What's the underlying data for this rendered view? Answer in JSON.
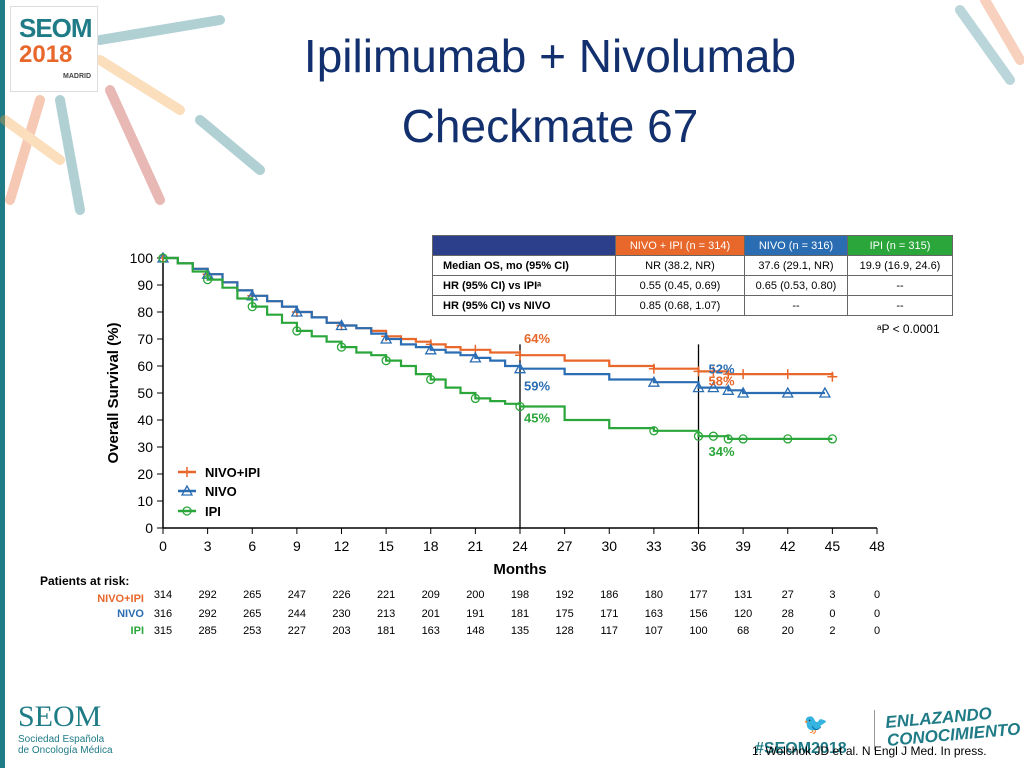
{
  "logo": {
    "line1": "SEOM",
    "line2": "2018",
    "city": "MADRID"
  },
  "title": {
    "line1": "Ipilimumab + Nivolumab",
    "line2": "Checkmate 67"
  },
  "table": {
    "headers": [
      "",
      "NIVO + IPI (n = 314)",
      "NIVO (n = 316)",
      "IPI (n = 315)"
    ],
    "rows": [
      {
        "label": "Median OS, mo (95% CI)",
        "c1": "NR (38.2, NR)",
        "c2": "37.6 (29.1, NR)",
        "c3": "19.9 (16.9, 24.6)"
      },
      {
        "label": "HR (95% CI) vs IPIᵃ",
        "c1": "0.55 (0.45, 0.69)",
        "c2": "0.65 (0.53, 0.80)",
        "c3": "--"
      },
      {
        "label": "HR (95% CI) vs NIVO",
        "c1": "0.85 (0.68, 1.07)",
        "c2": "--",
        "c3": "--"
      }
    ]
  },
  "footnote": "ᵃP < 0.0001",
  "chart_data": {
    "type": "line",
    "ylabel": "Overall Survival (%)",
    "xlabel": "Months",
    "xlim": [
      0,
      48
    ],
    "ylim": [
      0,
      100
    ],
    "xticks": [
      0,
      3,
      6,
      9,
      12,
      15,
      18,
      21,
      24,
      27,
      30,
      33,
      36,
      39,
      42,
      45,
      48
    ],
    "yticks": [
      0,
      10,
      20,
      30,
      40,
      50,
      60,
      70,
      80,
      90,
      100
    ],
    "reference_lines_x": [
      24,
      36
    ],
    "series": [
      {
        "name": "NIVO+IPI",
        "color": "#e8672a",
        "marker": "plus",
        "x": [
          0,
          1,
          2,
          3,
          4,
          5,
          6,
          7,
          8,
          9,
          10,
          11,
          12,
          13,
          14,
          15,
          16,
          17,
          18,
          19,
          20,
          21,
          22,
          23,
          24,
          27,
          30,
          33,
          36,
          37,
          38,
          39,
          42,
          45
        ],
        "y": [
          100,
          98,
          96,
          94,
          91,
          88,
          86,
          84,
          82,
          80,
          78,
          76,
          75,
          74,
          73,
          71,
          70,
          69,
          68,
          67,
          66,
          66,
          65,
          65,
          64,
          62,
          60,
          59,
          58,
          58,
          57,
          57,
          57,
          56
        ]
      },
      {
        "name": "NIVO",
        "color": "#2a6db3",
        "marker": "triangle",
        "x": [
          0,
          1,
          2,
          3,
          4,
          5,
          6,
          7,
          8,
          9,
          10,
          11,
          12,
          13,
          14,
          15,
          16,
          17,
          18,
          19,
          20,
          21,
          22,
          23,
          24,
          27,
          30,
          33,
          36,
          37,
          38,
          39,
          42,
          44.5
        ],
        "y": [
          100,
          98,
          96,
          94,
          91,
          88,
          86,
          84,
          82,
          80,
          78,
          76,
          75,
          74,
          72,
          70,
          68,
          67,
          66,
          65,
          64,
          63,
          62,
          60,
          59,
          57,
          55,
          54,
          52,
          52,
          51,
          50,
          50,
          50
        ]
      },
      {
        "name": "IPI",
        "color": "#2aa63a",
        "marker": "circle",
        "x": [
          0,
          1,
          2,
          3,
          4,
          5,
          6,
          7,
          8,
          9,
          10,
          11,
          12,
          13,
          14,
          15,
          16,
          17,
          18,
          19,
          20,
          21,
          22,
          23,
          24,
          27,
          30,
          33,
          36,
          37,
          38,
          39,
          42,
          45
        ],
        "y": [
          100,
          98,
          95,
          92,
          89,
          85,
          82,
          79,
          76,
          73,
          71,
          69,
          67,
          65,
          64,
          62,
          60,
          57,
          55,
          52,
          50,
          48,
          47,
          46,
          45,
          40,
          37,
          36,
          34,
          34,
          33,
          33,
          33,
          33
        ]
      }
    ],
    "annotations": [
      {
        "text": "64%",
        "x": 24,
        "y": 64,
        "color": "#e8672a"
      },
      {
        "text": "59%",
        "x": 24,
        "y": 59,
        "color": "#2a6db3"
      },
      {
        "text": "45%",
        "x": 24,
        "y": 45,
        "color": "#2aa63a"
      },
      {
        "text": "58%",
        "x": 36,
        "y": 58,
        "color": "#e8672a"
      },
      {
        "text": "52%",
        "x": 36,
        "y": 52,
        "color": "#2a6db3"
      },
      {
        "text": "34%",
        "x": 36,
        "y": 34,
        "color": "#2aa63a"
      }
    ],
    "legend": {
      "placement": "bottom-left",
      "entries": [
        "NIVO+IPI",
        "NIVO",
        "IPI"
      ]
    },
    "risk_table": {
      "title": "Patients at risk:",
      "rows": [
        {
          "name": "NIVO+IPI",
          "color": "#e8672a",
          "values": [
            314,
            292,
            265,
            247,
            226,
            221,
            209,
            200,
            198,
            192,
            186,
            180,
            177,
            131,
            27,
            3,
            0
          ]
        },
        {
          "name": "NIVO",
          "color": "#2a6db3",
          "values": [
            316,
            292,
            265,
            244,
            230,
            213,
            201,
            191,
            181,
            175,
            171,
            163,
            156,
            120,
            28,
            0,
            0
          ]
        },
        {
          "name": "IPI",
          "color": "#2aa63a",
          "values": [
            315,
            285,
            253,
            227,
            203,
            181,
            163,
            148,
            135,
            128,
            117,
            107,
            100,
            68,
            20,
            2,
            0
          ]
        }
      ]
    }
  },
  "footer": {
    "seom": "SEOM",
    "seom_sub": "Sociedad Española de Oncología Médica",
    "hashtag": "#SEOM2018",
    "slogan": "ENLAZANDO CONOCIMIENTO",
    "reference": "1. Wolchok JD et al. N Engl J Med. In press."
  }
}
